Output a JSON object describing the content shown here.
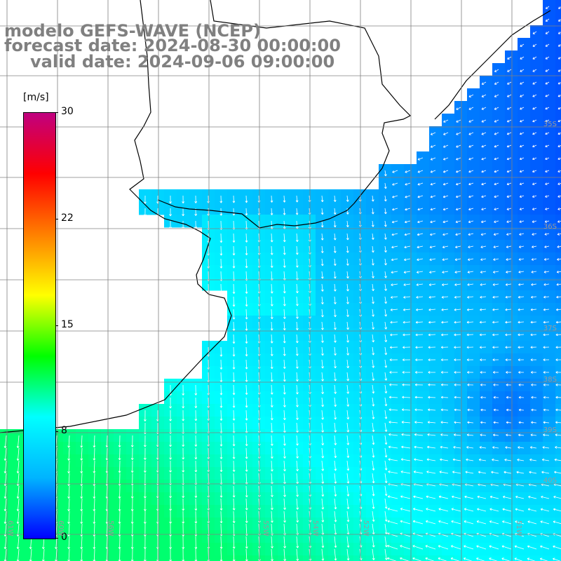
{
  "title": {
    "line1": "modelo GEFS-WAVE (NCEP)",
    "line2": "forecast date: 2024-08-30 00:00:00",
    "line3": "valid date: 2024-09-06 09:00:00"
  },
  "colorbar": {
    "unit": "[m/s]",
    "min": 0,
    "max": 30,
    "ticks": [
      {
        "label": "30",
        "value": 30
      },
      {
        "label": "22",
        "value": 22.5
      },
      {
        "label": "15",
        "value": 15
      },
      {
        "label": "8",
        "value": 7.5
      },
      {
        "label": "0",
        "value": 0
      }
    ],
    "colors": [
      "#0000ff",
      "#00b4ff",
      "#00ffff",
      "#00ff00",
      "#ffff00",
      "#ff8000",
      "#ff0000",
      "#c00080"
    ]
  },
  "lat_labels": [
    "35S",
    "36S",
    "37S",
    "38S",
    "39S",
    "40S"
  ],
  "lon_labels": [
    "61W",
    "60W",
    "56W",
    "55W",
    "54W",
    "52W",
    "51W"
  ],
  "field_colors": {
    "land": "#ffffff",
    "coastline": "#000000",
    "gridline": "#808080",
    "arrow": "#ffffff"
  },
  "wind_field_note": ""
}
